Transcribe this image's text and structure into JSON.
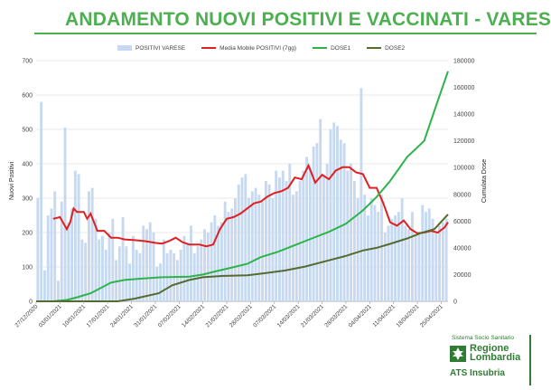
{
  "header": {
    "title": "ANDAMENTO NUOVI POSITIVI E VACCINATI - VARESE"
  },
  "legend": {
    "items": [
      {
        "label": "POSITIVI VARESE",
        "color": "#c6d9f0",
        "kind": "bar"
      },
      {
        "label": "Media Mobile POSITIVI (7gg)",
        "color": "#e02020",
        "kind": "line"
      },
      {
        "label": "DOSE1",
        "color": "#2db34a",
        "kind": "line"
      },
      {
        "label": "DOSE2",
        "color": "#556b2f",
        "kind": "line"
      }
    ]
  },
  "logo": {
    "top": "Sistema Socio Sanitario",
    "name_line1": "Regione",
    "name_line2": "Lombardia",
    "sub": "ATS Insubria"
  },
  "chart_data": {
    "type": "bar",
    "title": "",
    "ylabel": "Nuovi Positivi",
    "y2label": "Cumulata Dose",
    "ylim": [
      0,
      700
    ],
    "y2lim": [
      0,
      180000
    ],
    "yticks": [
      0,
      100,
      200,
      300,
      400,
      500,
      600,
      700
    ],
    "y2ticks": [
      0,
      20000,
      40000,
      60000,
      80000,
      100000,
      120000,
      140000,
      160000,
      180000
    ],
    "x_start": "27/12/2020",
    "x_end": "27/04/2021",
    "x_tick_labels": [
      "27/12/2020",
      "03/01/2021",
      "10/01/2021",
      "17/01/2021",
      "24/01/2021",
      "31/01/2021",
      "07/02/2021",
      "14/02/2021",
      "21/02/2021",
      "28/02/2021",
      "07/03/2021",
      "14/03/2021",
      "21/03/2021",
      "28/03/2021",
      "04/04/2021",
      "11/04/2021",
      "18/04/2021",
      "25/04/2021"
    ],
    "grid": true,
    "legend_position": "top",
    "series": [
      {
        "name": "POSITIVI VARESE",
        "axis": "left",
        "kind": "bar",
        "values": [
          300,
          580,
          90,
          250,
          270,
          320,
          60,
          290,
          505,
          230,
          270,
          380,
          370,
          180,
          170,
          320,
          330,
          240,
          180,
          190,
          150,
          200,
          240,
          120,
          160,
          245,
          160,
          110,
          190,
          150,
          140,
          220,
          210,
          230,
          200,
          100,
          110,
          180,
          140,
          150,
          140,
          120,
          150,
          190,
          170,
          220,
          140,
          160,
          180,
          210,
          200,
          230,
          250,
          220,
          230,
          290,
          260,
          270,
          300,
          340,
          360,
          370,
          300,
          320,
          330,
          310,
          290,
          350,
          340,
          300,
          380,
          360,
          380,
          350,
          400,
          310,
          320,
          350,
          380,
          420,
          390,
          450,
          460,
          530,
          370,
          400,
          500,
          520,
          510,
          470,
          460,
          380,
          400,
          350,
          300,
          620,
          310,
          250,
          300,
          280,
          260,
          310,
          200,
          220,
          240,
          250,
          260,
          300,
          220,
          210,
          260,
          190,
          200,
          280,
          260,
          270,
          240,
          200,
          220,
          230,
          240
        ]
      },
      {
        "name": "Media Mobile POSITIVI (7gg)",
        "axis": "left",
        "kind": "line",
        "x": [
          "2021-01-01",
          "2021-01-03",
          "2021-01-05",
          "2021-01-06",
          "2021-01-07",
          "2021-01-08",
          "2021-01-10",
          "2021-01-11",
          "2021-01-12",
          "2021-01-14",
          "2021-01-16",
          "2021-01-18",
          "2021-01-20",
          "2021-01-22",
          "2021-01-25",
          "2021-01-28",
          "2021-01-31",
          "2021-02-02",
          "2021-02-04",
          "2021-02-06",
          "2021-02-08",
          "2021-02-10",
          "2021-02-13",
          "2021-02-15",
          "2021-02-17",
          "2021-02-19",
          "2021-02-21",
          "2021-02-23",
          "2021-02-25",
          "2021-02-27",
          "2021-03-01",
          "2021-03-03",
          "2021-03-05",
          "2021-03-07",
          "2021-03-09",
          "2021-03-11",
          "2021-03-13",
          "2021-03-15",
          "2021-03-17",
          "2021-03-19",
          "2021-03-21",
          "2021-03-23",
          "2021-03-25",
          "2021-03-27",
          "2021-03-29",
          "2021-03-31",
          "2021-04-02",
          "2021-04-04",
          "2021-04-06",
          "2021-04-08",
          "2021-04-10",
          "2021-04-12",
          "2021-04-14",
          "2021-04-16",
          "2021-04-18",
          "2021-04-20",
          "2021-04-22",
          "2021-04-24",
          "2021-04-26",
          "2021-04-27"
        ],
        "values": [
          240,
          245,
          210,
          230,
          270,
          260,
          260,
          240,
          255,
          205,
          205,
          185,
          185,
          180,
          178,
          175,
          170,
          168,
          175,
          185,
          172,
          165,
          165,
          160,
          165,
          210,
          240,
          245,
          255,
          270,
          285,
          290,
          305,
          315,
          320,
          330,
          360,
          355,
          395,
          345,
          368,
          355,
          380,
          390,
          390,
          375,
          370,
          330,
          330,
          285,
          230,
          220,
          235,
          210,
          198,
          200,
          205,
          200,
          215,
          230
        ]
      },
      {
        "name": "DOSE1",
        "axis": "right",
        "kind": "line",
        "x": [
          "2020-12-27",
          "2021-01-01",
          "2021-01-05",
          "2021-01-08",
          "2021-01-12",
          "2021-01-15",
          "2021-01-18",
          "2021-01-22",
          "2021-01-27",
          "2021-02-02",
          "2021-02-10",
          "2021-02-14",
          "2021-02-17",
          "2021-02-22",
          "2021-02-27",
          "2021-03-03",
          "2021-03-08",
          "2021-03-13",
          "2021-03-18",
          "2021-03-23",
          "2021-03-28",
          "2021-04-02",
          "2021-04-06",
          "2021-04-10",
          "2021-04-15",
          "2021-04-20",
          "2021-04-24",
          "2021-04-27"
        ],
        "values": [
          0,
          0,
          1000,
          3000,
          6000,
          10000,
          14000,
          16000,
          17000,
          18000,
          18500,
          20000,
          22000,
          25000,
          28000,
          33000,
          37000,
          42000,
          47000,
          52000,
          58000,
          68000,
          78000,
          90000,
          108000,
          120000,
          150000,
          172000
        ]
      },
      {
        "name": "DOSE2",
        "axis": "right",
        "kind": "line",
        "x": [
          "2020-12-27",
          "2021-01-10",
          "2021-01-20",
          "2021-01-25",
          "2021-02-01",
          "2021-02-05",
          "2021-02-10",
          "2021-02-14",
          "2021-02-20",
          "2021-02-27",
          "2021-03-04",
          "2021-03-10",
          "2021-03-16",
          "2021-03-22",
          "2021-03-28",
          "2021-04-02",
          "2021-04-06",
          "2021-04-10",
          "2021-04-15",
          "2021-04-19",
          "2021-04-23",
          "2021-04-27"
        ],
        "values": [
          0,
          0,
          0,
          2000,
          6000,
          12000,
          16000,
          18000,
          19000,
          19500,
          21000,
          23000,
          26000,
          30000,
          34000,
          38000,
          40000,
          43000,
          47000,
          51000,
          54000,
          65000
        ]
      }
    ]
  }
}
